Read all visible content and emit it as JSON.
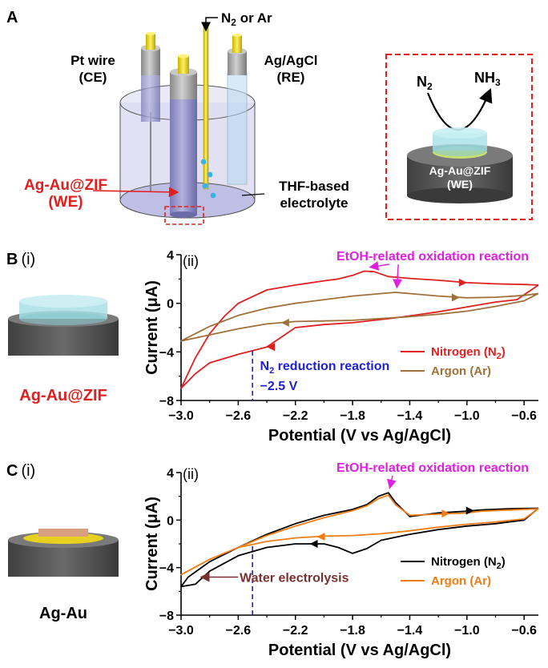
{
  "panels": {
    "a": "A",
    "b": "B",
    "b_i": "(i)",
    "b_ii": "(ii)",
    "c": "C",
    "c_i": "(i)",
    "c_ii": "(ii)"
  },
  "cell": {
    "gas_label_prefix": "N",
    "gas_label_sub": "2",
    "gas_label_suffix": " or Ar",
    "ce_line1": "Pt wire",
    "ce_line2": "(CE)",
    "re_line1": "Ag/AgCl",
    "re_line2": "(RE)",
    "we_line1": "Ag-Au@ZIF",
    "we_line2": "(WE)",
    "electrolyte_line1": "THF-based",
    "electrolyte_line2": "electrolyte"
  },
  "inset": {
    "reactant": "N",
    "reactant_sub": "2",
    "product": "NH",
    "product_sub": "3",
    "label_line1": "Ag-Au@ZIF",
    "label_line2": "(WE)"
  },
  "electrode_labels": {
    "b": "Ag-Au@ZIF",
    "c": "Ag-Au"
  },
  "colors": {
    "nitrogen_b": "#e02020",
    "argon_b": "#a0703a",
    "nitrogen_c": "#000000",
    "argon_c": "#f07c14",
    "magenta": "#e020e0",
    "blue": "#1f1fd6",
    "brown": "#7a3030",
    "we_red": "#e02020"
  },
  "chart_data": [
    {
      "type": "line",
      "panel": "B (ii)",
      "xlabel": "Potential (V vs Ag/AgCl)",
      "ylabel": "Current (μA)",
      "xlim": [
        -3.0,
        -0.5
      ],
      "ylim": [
        -8,
        4
      ],
      "x_ticks": [
        "-3.0",
        "-2.6",
        "-2.2",
        "-1.8",
        "-1.4",
        "-1.0",
        "-0.6"
      ],
      "y_ticks": [
        "4",
        "0",
        "-4",
        "-8"
      ],
      "annotations": {
        "oxidation": "EtOH-related oxidation reaction",
        "reduction_prefix": "N",
        "reduction_sub": "2",
        "reduction_suffix": " reduction reaction",
        "reduction_potential": "−2.5 V"
      },
      "legend_position": "bottom-right",
      "series": [
        {
          "name": "Nitrogen (N2)",
          "legend_prefix": "Nitrogen (N",
          "legend_sub": "2",
          "legend_suffix": ")",
          "points": [
            [
              -0.5,
              1.5
            ],
            [
              -0.6,
              1.55
            ],
            [
              -0.8,
              1.6
            ],
            [
              -1.0,
              1.7
            ],
            [
              -1.2,
              1.9
            ],
            [
              -1.4,
              2.05
            ],
            [
              -1.55,
              2.2
            ],
            [
              -1.65,
              2.6
            ],
            [
              -1.72,
              2.65
            ],
            [
              -1.8,
              2.3
            ],
            [
              -1.9,
              2.0
            ],
            [
              -2.0,
              1.85
            ],
            [
              -2.2,
              1.5
            ],
            [
              -2.4,
              1.1
            ],
            [
              -2.6,
              0.0
            ],
            [
              -2.7,
              -1.1
            ],
            [
              -2.8,
              -2.5
            ],
            [
              -2.9,
              -4.5
            ],
            [
              -3.0,
              -7.0
            ],
            [
              -2.9,
              -5.8
            ],
            [
              -2.8,
              -4.9
            ],
            [
              -2.6,
              -4.2
            ],
            [
              -2.4,
              -3.6
            ],
            [
              -2.2,
              -2.0
            ],
            [
              -2.0,
              -1.75
            ],
            [
              -1.8,
              -1.6
            ],
            [
              -1.5,
              -1.2
            ],
            [
              -1.2,
              -0.7
            ],
            [
              -1.0,
              -0.3
            ],
            [
              -0.8,
              0.1
            ],
            [
              -0.65,
              0.3
            ],
            [
              -0.5,
              1.5
            ]
          ]
        },
        {
          "name": "Argon (Ar)",
          "legend_prefix": "Argon (Ar)",
          "legend_sub": "",
          "legend_suffix": "",
          "points": [
            [
              -0.5,
              0.8
            ],
            [
              -0.6,
              0.65
            ],
            [
              -0.8,
              0.5
            ],
            [
              -1.0,
              0.45
            ],
            [
              -1.2,
              0.6
            ],
            [
              -1.4,
              0.8
            ],
            [
              -1.5,
              0.9
            ],
            [
              -1.6,
              0.8
            ],
            [
              -1.8,
              0.6
            ],
            [
              -2.0,
              0.3
            ],
            [
              -2.2,
              0.0
            ],
            [
              -2.4,
              -0.4
            ],
            [
              -2.6,
              -1.0
            ],
            [
              -2.8,
              -1.9
            ],
            [
              -3.0,
              -3.1
            ],
            [
              -2.8,
              -2.6
            ],
            [
              -2.6,
              -2.1
            ],
            [
              -2.4,
              -1.7
            ],
            [
              -2.2,
              -1.5
            ],
            [
              -2.0,
              -1.45
            ],
            [
              -1.8,
              -1.4
            ],
            [
              -1.6,
              -1.25
            ],
            [
              -1.4,
              -1.1
            ],
            [
              -1.2,
              -0.9
            ],
            [
              -1.0,
              -0.65
            ],
            [
              -0.8,
              -0.25
            ],
            [
              -0.6,
              0.2
            ],
            [
              -0.5,
              0.8
            ]
          ]
        }
      ]
    },
    {
      "type": "line",
      "panel": "C (ii)",
      "xlabel": "Potential (V vs Ag/AgCl)",
      "ylabel": "Current (μA)",
      "xlim": [
        -3.0,
        -0.5
      ],
      "ylim": [
        -8,
        4
      ],
      "x_ticks": [
        "-3.0",
        "-2.6",
        "-2.2",
        "-1.8",
        "-1.4",
        "-1.0",
        "-0.6"
      ],
      "y_ticks": [
        "4",
        "0",
        "-4",
        "-8"
      ],
      "annotations": {
        "oxidation": "EtOH-related oxidation reaction",
        "electrolysis": "Water electrolysis"
      },
      "legend_position": "bottom-right",
      "series": [
        {
          "name": "Nitrogen (N2)",
          "legend_prefix": "Nitrogen (N",
          "legend_sub": "2",
          "legend_suffix": ")",
          "points": [
            [
              -0.5,
              1.0
            ],
            [
              -0.7,
              0.95
            ],
            [
              -0.9,
              0.85
            ],
            [
              -1.0,
              0.75
            ],
            [
              -1.2,
              0.6
            ],
            [
              -1.4,
              0.3
            ],
            [
              -1.5,
              1.5
            ],
            [
              -1.55,
              2.3
            ],
            [
              -1.62,
              2.0
            ],
            [
              -1.7,
              1.3
            ],
            [
              -1.8,
              0.9
            ],
            [
              -2.0,
              0.4
            ],
            [
              -2.2,
              -0.3
            ],
            [
              -2.4,
              -1.2
            ],
            [
              -2.6,
              -2.3
            ],
            [
              -2.8,
              -3.5
            ],
            [
              -2.95,
              -4.8
            ],
            [
              -3.0,
              -5.6
            ],
            [
              -2.9,
              -5.4
            ],
            [
              -2.8,
              -4.3
            ],
            [
              -2.6,
              -3.0
            ],
            [
              -2.4,
              -2.3
            ],
            [
              -2.2,
              -2.0
            ],
            [
              -2.0,
              -2.0
            ],
            [
              -1.9,
              -2.3
            ],
            [
              -1.8,
              -2.8
            ],
            [
              -1.7,
              -2.4
            ],
            [
              -1.6,
              -1.7
            ],
            [
              -1.4,
              -1.2
            ],
            [
              -1.2,
              -0.8
            ],
            [
              -1.0,
              -0.5
            ],
            [
              -0.8,
              -0.3
            ],
            [
              -0.6,
              0.0
            ],
            [
              -0.5,
              1.0
            ]
          ]
        },
        {
          "name": "Argon (Ar)",
          "legend_prefix": "Argon (Ar)",
          "legend_sub": "",
          "legend_suffix": "",
          "points": [
            [
              -0.5,
              0.95
            ],
            [
              -0.7,
              0.85
            ],
            [
              -0.9,
              0.75
            ],
            [
              -1.0,
              0.6
            ],
            [
              -1.2,
              0.5
            ],
            [
              -1.4,
              0.4
            ],
            [
              -1.5,
              1.3
            ],
            [
              -1.55,
              2.1
            ],
            [
              -1.62,
              1.8
            ],
            [
              -1.7,
              1.2
            ],
            [
              -1.8,
              0.8
            ],
            [
              -2.0,
              0.2
            ],
            [
              -2.2,
              -0.5
            ],
            [
              -2.4,
              -1.3
            ],
            [
              -2.6,
              -2.3
            ],
            [
              -2.8,
              -3.3
            ],
            [
              -3.0,
              -4.6
            ],
            [
              -2.8,
              -3.3
            ],
            [
              -2.6,
              -2.3
            ],
            [
              -2.4,
              -1.8
            ],
            [
              -2.2,
              -1.5
            ],
            [
              -2.0,
              -1.35
            ],
            [
              -1.8,
              -1.3
            ],
            [
              -1.6,
              -1.15
            ],
            [
              -1.4,
              -0.9
            ],
            [
              -1.2,
              -0.6
            ],
            [
              -1.0,
              -0.35
            ],
            [
              -0.8,
              -0.15
            ],
            [
              -0.6,
              0.1
            ],
            [
              -0.5,
              0.95
            ]
          ]
        }
      ]
    }
  ]
}
